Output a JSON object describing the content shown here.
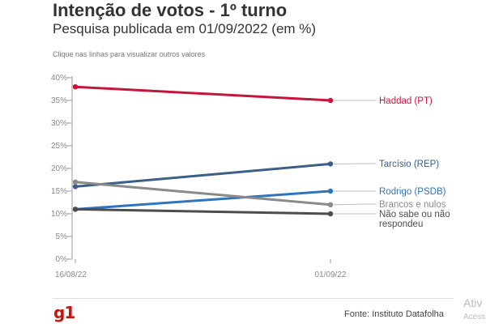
{
  "header": {
    "title": "Intenção de votos - 1º turno",
    "subtitle": "Pesquisa publicada em 01/09/2022 (em %)",
    "hint": "Clique nas linhas para visualizar outros valores"
  },
  "footer": {
    "logo": "g1",
    "source": "Fonte: Instituto Datafolha"
  },
  "overlay": {
    "title": "Ativ",
    "subtitle": "Acess"
  },
  "colors": {
    "haddad": "#c4163c",
    "tarcisio": "#3b5f87",
    "rodrigo": "#2f74bd",
    "brancos": "#8a8a8a",
    "naosabe": "#4d4d4d",
    "axis": "#999999",
    "grid": "#dddddd"
  },
  "chart_data": {
    "type": "line",
    "categories": [
      "16/08/22",
      "01/09/22"
    ],
    "ylim": [
      0,
      40
    ],
    "yticks": [
      "0%",
      "5%",
      "10%",
      "15%",
      "20%",
      "25%",
      "30%",
      "35%",
      "40%"
    ],
    "grid": false,
    "legend": "right-end labels",
    "series": [
      {
        "name": "Haddad (PT)",
        "values": [
          38,
          35
        ],
        "color": "#c4163c"
      },
      {
        "name": "Tarcísio (REP)",
        "values": [
          16,
          21
        ],
        "color": "#3b5f87"
      },
      {
        "name": "Rodrigo (PSDB)",
        "values": [
          11,
          15
        ],
        "color": "#2f74bd"
      },
      {
        "name": "Brancos e nulos",
        "values": [
          17,
          12
        ],
        "color": "#8a8a8a"
      },
      {
        "name": "Não sabe ou não respondeu",
        "values": [
          11,
          10
        ],
        "color": "#4d4d4d"
      }
    ]
  }
}
